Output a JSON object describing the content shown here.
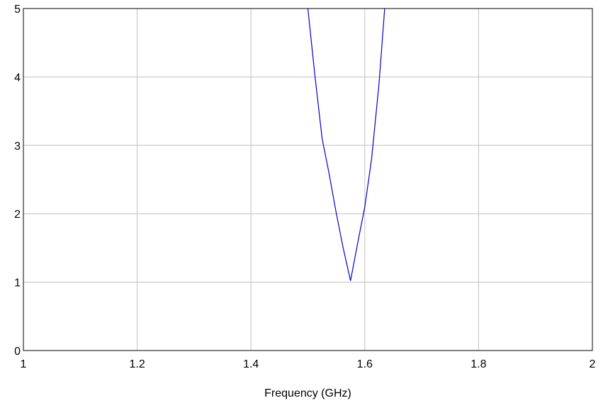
{
  "chart_data": {
    "type": "line",
    "title": "",
    "xlabel": "Frequency (GHz)",
    "ylabel": "",
    "xlim": [
      1,
      2
    ],
    "ylim": [
      0,
      5
    ],
    "grid": true,
    "x_ticks": [
      {
        "value": 1,
        "label": "1"
      },
      {
        "value": 1.2,
        "label": "1.2"
      },
      {
        "value": 1.4,
        "label": "1.4"
      },
      {
        "value": 1.6,
        "label": "1.6"
      },
      {
        "value": 1.8,
        "label": "1.8"
      },
      {
        "value": 2,
        "label": "2"
      }
    ],
    "y_ticks": [
      {
        "value": 0,
        "label": "0"
      },
      {
        "value": 1,
        "label": "1"
      },
      {
        "value": 2,
        "label": "2"
      },
      {
        "value": 3,
        "label": "3"
      },
      {
        "value": 4,
        "label": "4"
      },
      {
        "value": 5,
        "label": "5"
      }
    ],
    "series": [
      {
        "color": "#0000cc",
        "x": [
          1.5,
          1.512,
          1.525,
          1.537,
          1.55,
          1.562,
          1.575,
          1.587,
          1.6,
          1.612,
          1.625,
          1.635
        ],
        "y": [
          5.0,
          4.05,
          3.1,
          2.6,
          2.0,
          1.5,
          1.02,
          1.55,
          2.1,
          2.8,
          3.9,
          5.0
        ]
      }
    ]
  }
}
